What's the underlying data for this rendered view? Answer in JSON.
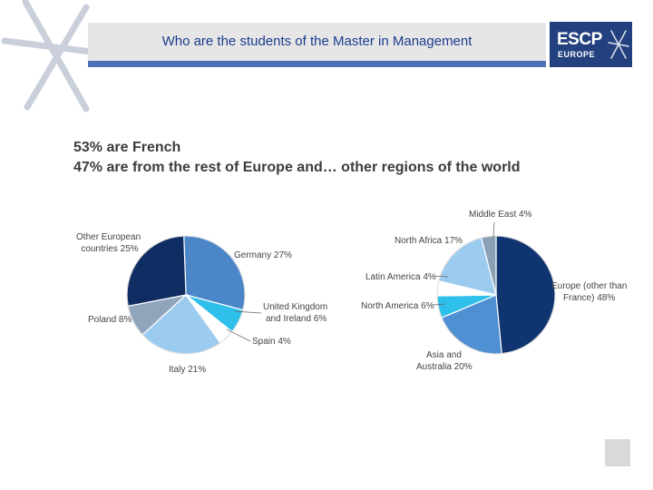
{
  "header": {
    "title": "Who are the students of the Master in Management"
  },
  "logo": {
    "main": "ESCP",
    "sub": "EUROPE"
  },
  "headline": {
    "line1": "53% are French",
    "line2": "47% are from the rest of Europe and… other regions of the world"
  },
  "colors": {
    "title": "#1a3d8f",
    "title_underline": "#4f6fb3",
    "logo_bg": "#23407f"
  },
  "chart_data": [
    {
      "type": "pie",
      "slices": [
        {
          "label": "Germany 27%",
          "value": 27,
          "color": "#4a86c8"
        },
        {
          "label": "United Kingdom and Ireland 6%",
          "value": 6,
          "color": "#2ec0ea"
        },
        {
          "label": "Spain 4%",
          "value": 4,
          "color": "#ffffff"
        },
        {
          "label": "Italy 21%",
          "value": 21,
          "color": "#9ccbf0"
        },
        {
          "label": "Poland 8%",
          "value": 8,
          "color": "#8fa5bc"
        },
        {
          "label": "Other European countries 25%",
          "value": 25,
          "color": "#0f2d63"
        }
      ]
    },
    {
      "type": "pie",
      "slices": [
        {
          "label": "Europe (other than France) 48%",
          "value": 48,
          "color": "#0f3470"
        },
        {
          "label": "Asia and Australia 20%",
          "value": 20,
          "color": "#4f90d3"
        },
        {
          "label": "North America 6%",
          "value": 6,
          "color": "#2ec0ea"
        },
        {
          "label": "Latin America 4%",
          "value": 4,
          "color": "#ffffff"
        },
        {
          "label": "North Africa 17%",
          "value": 17,
          "color": "#9ccbf0"
        },
        {
          "label": "Middle East 4%",
          "value": 4,
          "color": "#8aa0b6"
        }
      ]
    }
  ]
}
